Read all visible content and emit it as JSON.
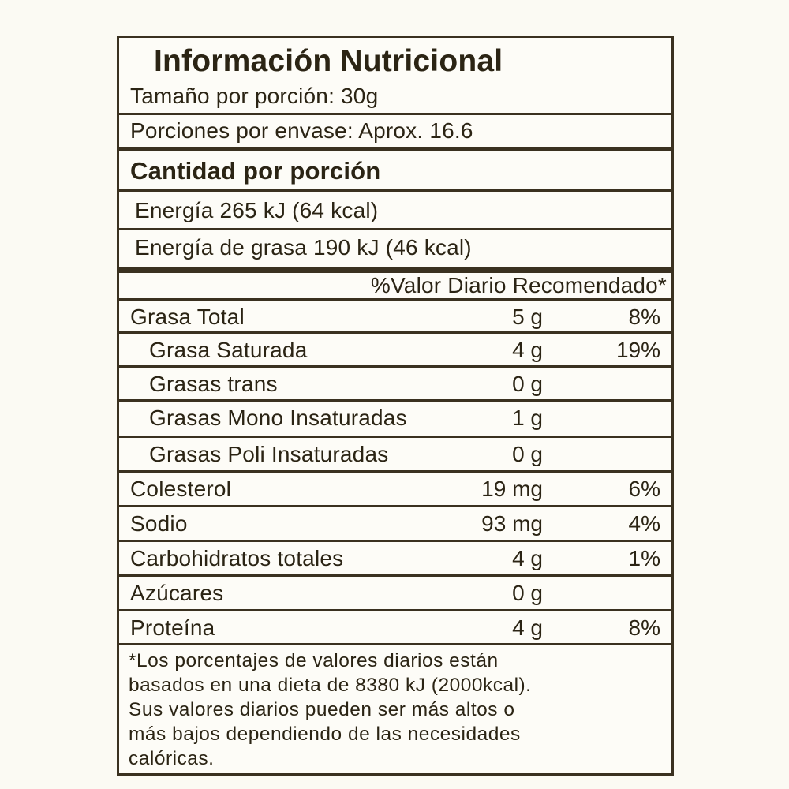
{
  "title": "Información Nutricional",
  "serving_size": "Tamaño por porción: 30g",
  "servings_per_container": "Porciones por envase: Aprox. 16.6",
  "amount_per_serving": "Cantidad por porción",
  "energy": "Energía 265 kJ (64 kcal)",
  "energy_from_fat": "Energía de grasa 190 kJ (46 kcal)",
  "dv_header": "%Valor Diario Recomendado*",
  "nutrients": [
    {
      "name": "Grasa Total",
      "amount": "5 g",
      "dv": "8%"
    },
    {
      "name": "Grasa Saturada",
      "amount": "4 g",
      "dv": "19%"
    },
    {
      "name": "Grasas trans",
      "amount": "0 g",
      "dv": ""
    },
    {
      "name": "Grasas Mono Insaturadas",
      "amount": "1 g",
      "dv": ""
    },
    {
      "name": "Grasas Poli Insaturadas",
      "amount": "0 g",
      "dv": ""
    },
    {
      "name": "Colesterol",
      "amount": "19 mg",
      "dv": "6%"
    },
    {
      "name": "Sodio",
      "amount": "93 mg",
      "dv": "4%"
    },
    {
      "name": "Carbohidratos totales",
      "amount": "4 g",
      "dv": "1%"
    },
    {
      "name": "Azúcares",
      "amount": "0 g",
      "dv": ""
    },
    {
      "name": "Proteína",
      "amount": "4 g",
      "dv": "8%"
    }
  ],
  "footnote": [
    "*Los porcentajes de valores diarios están",
    "basados en una dieta de 8380 kJ (2000kcal).",
    "Sus valores diarios pueden ser más altos o",
    "más bajos dependiendo de las necesidades",
    "calóricas."
  ]
}
